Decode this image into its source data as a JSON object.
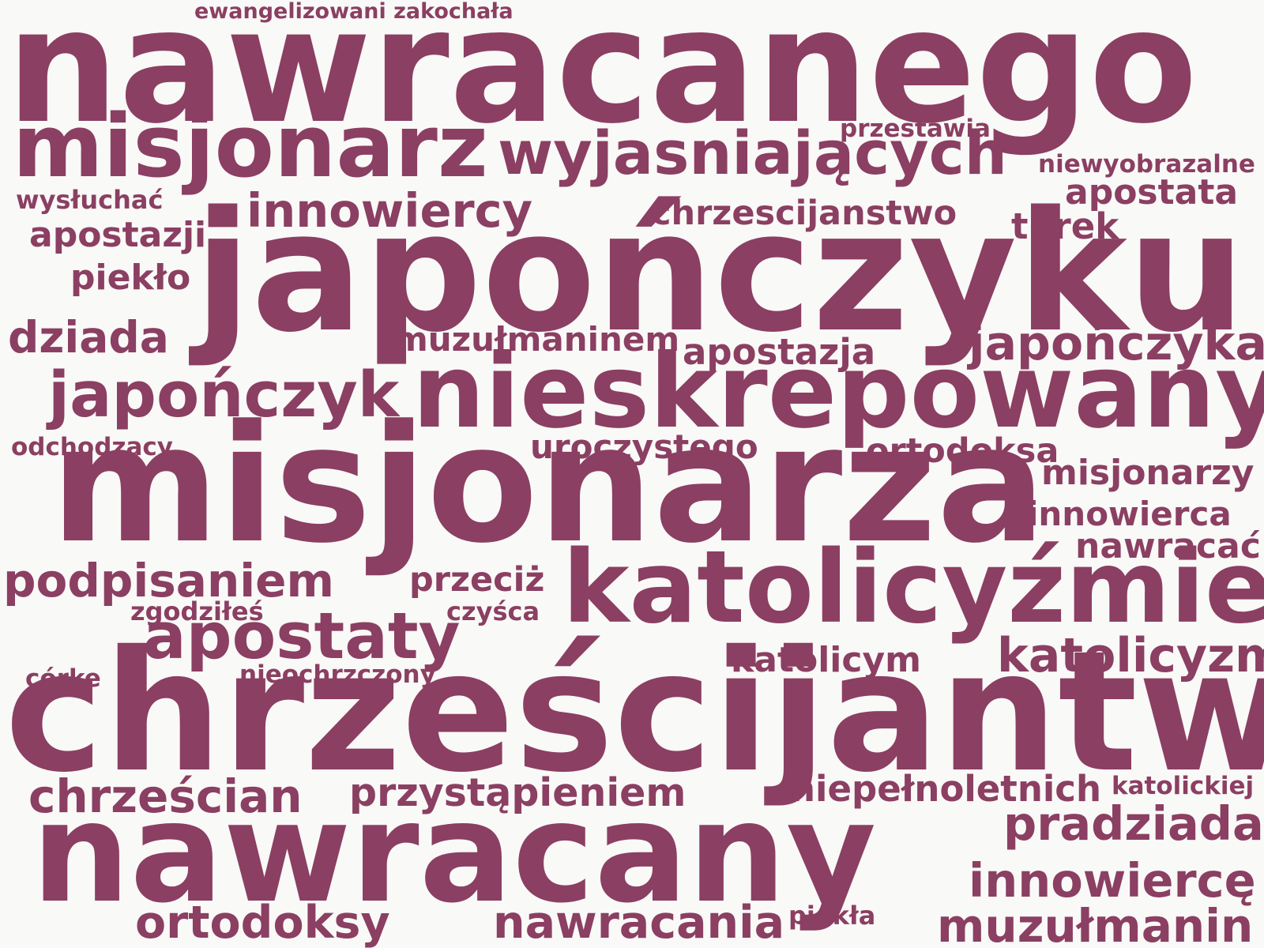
{
  "word_color": "#8b3f62",
  "background": "#f9f9f7",
  "words": [
    "ewangelizowani zakochała",
    "nawracanego",
    "misjonarz",
    "wyjasniających",
    "przestawia",
    "niewyobrazalne",
    "apostata",
    "wysłuchać",
    "innowiercy",
    "chrzescijanstwo",
    "turek",
    "japończyku",
    "apostazji",
    "piekło",
    "dziada",
    "muzułmaninem",
    "apostazja",
    "japończyka",
    "japończyk",
    "nieskrepowany",
    "odchodzący",
    "uroczystego",
    "ortodoksa",
    "misjonarzy",
    "misjonarza",
    "innowierca",
    "nawracać",
    "podpisaniem",
    "przeciż",
    "katolicyźmie",
    "zgodziłeś",
    "czyśca",
    "apostaty",
    "katolicym",
    "katolicyzm",
    "córke",
    "nieochrzczony",
    "chrześcijantwo",
    "chrześcian",
    "przystąpieniem",
    "niepełnoletnich",
    "katolickiej",
    "pradziada",
    "nawracany",
    "innowiercę",
    "ortodoksy",
    "nawracania",
    "piekła",
    "muzułmanin"
  ]
}
